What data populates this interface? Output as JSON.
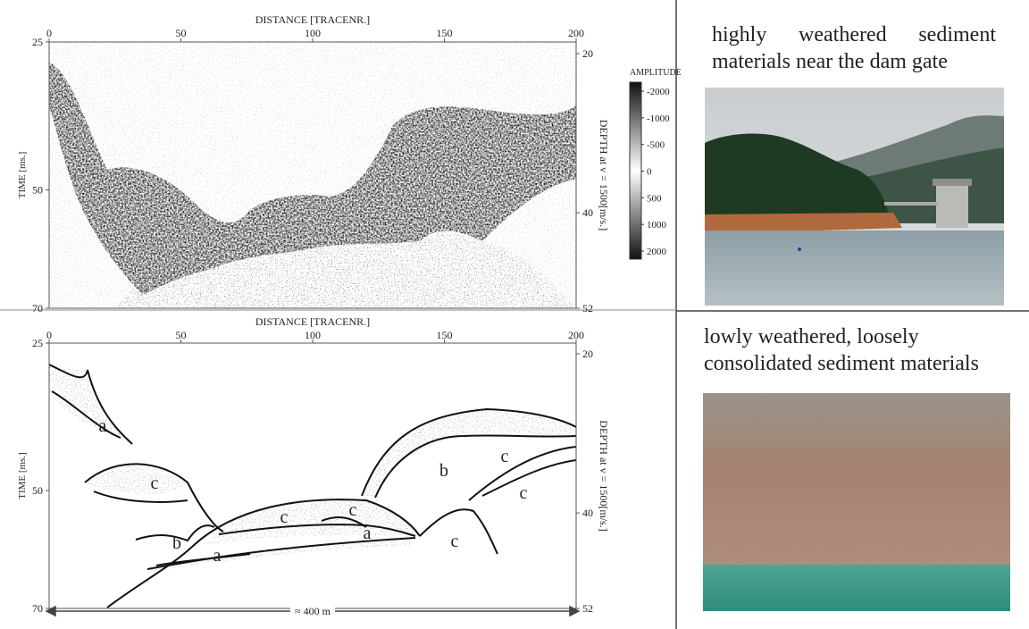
{
  "top_panel": {
    "x_axis_label": "DISTANCE [TRACENR.]",
    "y_axis_label": "TIME [ms.]",
    "y2_axis_label": "DEPTH at v = 1500[m/s.]",
    "x_ticks": [
      0,
      50,
      100,
      150,
      200
    ],
    "y_ticks": [
      25,
      50,
      70
    ],
    "y2_ticks": [
      20,
      40,
      52
    ],
    "colorbar": {
      "label": "AMPLITUDE",
      "ticks": [
        -2000,
        -1000,
        -500,
        0,
        500,
        1000,
        2000
      ]
    }
  },
  "bottom_panel": {
    "x_axis_label": "DISTANCE [TRACENR.]",
    "y_axis_label": "TIME [ms.]",
    "y2_axis_label": "DEPTH at v = 1500[m/s.]",
    "x_ticks": [
      0,
      50,
      100,
      150,
      200
    ],
    "y_ticks": [
      25,
      50,
      70
    ],
    "y2_ticks": [
      20,
      40,
      52
    ],
    "layer_labels": [
      "a",
      "c",
      "b",
      "c",
      "c",
      "c",
      "c",
      "b",
      "a",
      "a",
      "c"
    ],
    "scale_label": "≈ 400 m"
  },
  "photos": [
    {
      "caption": "highly weathered sediment materials near the dam gate"
    },
    {
      "caption": "lowly weathered, loosely consolidated sediment materials"
    }
  ]
}
